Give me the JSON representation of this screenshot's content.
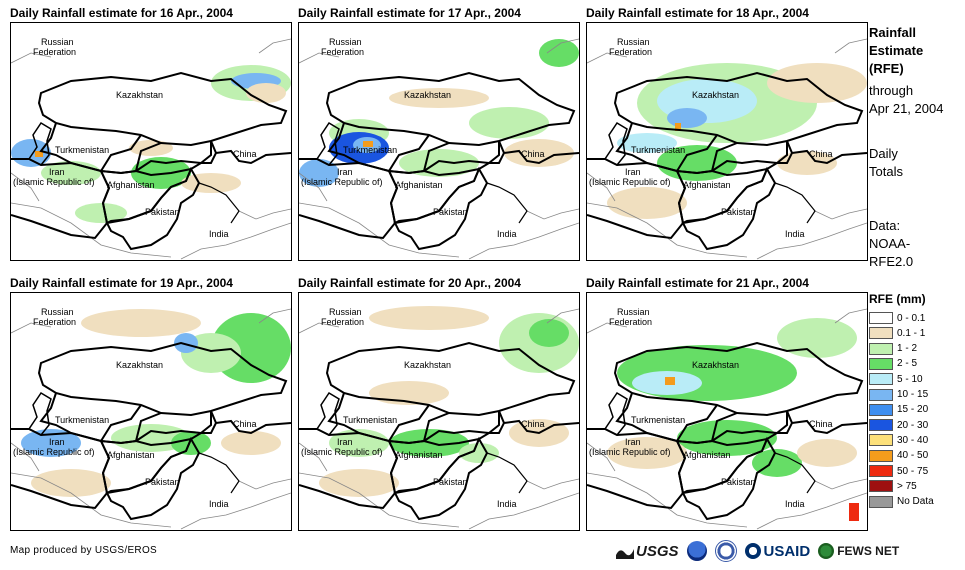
{
  "panels": [
    {
      "title": "Daily Rainfall estimate for 16 Apr., 2004"
    },
    {
      "title": "Daily Rainfall estimate for 17 Apr., 2004"
    },
    {
      "title": "Daily Rainfall estimate for 18 Apr., 2004"
    },
    {
      "title": "Daily Rainfall estimate for 19 Apr., 2004"
    },
    {
      "title": "Daily Rainfall estimate for 20 Apr., 2004"
    },
    {
      "title": "Daily Rainfall estimate for 21 Apr., 2004"
    }
  ],
  "map_labels": {
    "russia_1": "Russian",
    "russia_2": "Federation",
    "kazakhstan": "Kazakhstan",
    "turkmenistan": "Turkmenistan",
    "iran_1": "Iran",
    "iran_2": "(Islamic Republic of)",
    "afghanistan": "Afghanistan",
    "pakistan": "Pakistan",
    "china": "China",
    "india": "India"
  },
  "side_info": {
    "title_1": "Rainfall",
    "title_2": "Estimate",
    "title_3": "(RFE)",
    "through": "through",
    "date": "Apr 21, 2004",
    "daily_1": "Daily",
    "daily_2": "Totals",
    "data_1": "Data:",
    "data_2": "NOAA-",
    "data_3": "RFE2.0"
  },
  "legend": {
    "title": "RFE (mm)",
    "items": [
      {
        "label": "0 - 0.1",
        "color": "#ffffff"
      },
      {
        "label": "0.1 - 1",
        "color": "#f0dfbf"
      },
      {
        "label": "1 - 2",
        "color": "#bff0b0"
      },
      {
        "label": "2 - 5",
        "color": "#66dd66"
      },
      {
        "label": "5 - 10",
        "color": "#b9ecf7"
      },
      {
        "label": "10 - 15",
        "color": "#79b6f2"
      },
      {
        "label": "15 - 20",
        "color": "#3f8ff0"
      },
      {
        "label": "20 - 30",
        "color": "#1a55e0"
      },
      {
        "label": "30 - 40",
        "color": "#fce07a"
      },
      {
        "label": "40 - 50",
        "color": "#f49c1c"
      },
      {
        "label": "50 - 75",
        "color": "#ee2a10"
      },
      {
        "label": "> 75",
        "color": "#9e1010"
      },
      {
        "label": "No Data",
        "color": "#999999"
      }
    ]
  },
  "footer": {
    "credit": "Map produced by USGS/EROS",
    "logo_usgs": "USGS",
    "logo_usaid": "USAID",
    "logo_fews": "FEWS NET"
  }
}
